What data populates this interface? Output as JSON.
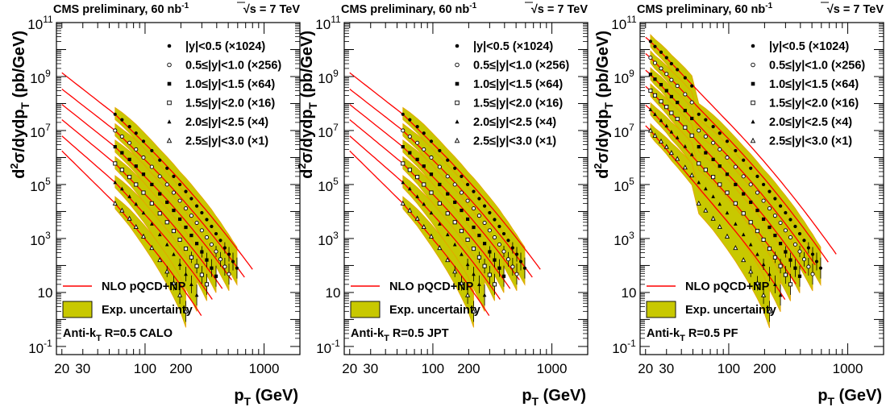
{
  "figure": {
    "header_left": "CMS preliminary, 60 nb",
    "header_left_sup": "-1",
    "header_right_sqrt": "√",
    "header_right": "s = 7 TeV",
    "ylabel_prefix": "d",
    "ylabel_sup": "2",
    "ylabel_main": "σ/dydp",
    "ylabel_sub": "T",
    "ylabel_units": " (pb/GeV)",
    "xlabel_main": "p",
    "xlabel_sub": "T",
    "xlabel_units": " (GeV)",
    "legend_entries": [
      {
        "marker": "dot",
        "label": "|y|<0.5 (×1024)"
      },
      {
        "marker": "open-circle",
        "label": "0.5≤|y|<1.0 (×256)"
      },
      {
        "marker": "square",
        "label": "1.0≤|y|<1.5 (×64)"
      },
      {
        "marker": "open-square",
        "label": "1.5≤|y|<2.0 (×16)"
      },
      {
        "marker": "triangle",
        "label": "2.0≤|y|<2.5 (×4)"
      },
      {
        "marker": "open-triangle",
        "label": "2.5≤|y|<3.0 (×1)"
      }
    ],
    "nlo_label": "NLO pQCD+NP",
    "exp_label": "Exp. uncertainty",
    "colors": {
      "nlo_line": "#ff0000",
      "uncertainty_band": "#c8c800",
      "band_edge": "#e8a000"
    }
  },
  "chart_data": [
    {
      "type": "scatter",
      "panel_label": "Anti-k",
      "panel_label_sub": "T",
      "panel_label_rest": " R=0.5 CALO",
      "xscale": "log",
      "yscale": "log",
      "xlim": [
        18,
        2000
      ],
      "ylim": [
        0.05,
        100000000000
      ],
      "xticks": [
        20,
        30,
        100,
        200,
        1000
      ],
      "yticks": [
        "10^-1",
        "10",
        "10^3",
        "10^5",
        "10^7",
        "10^9",
        "10^11"
      ],
      "series": [
        {
          "name": "|y|<0.5 (×1024)",
          "marker": "dot",
          "data_x": [
            56,
            64,
            74,
            84,
            97,
            114,
            133,
            153,
            174,
            196,
            220,
            245,
            272,
            300,
            330,
            362,
            395,
            430,
            468,
            507,
            548,
            592
          ],
          "data_y": [
            40000000,
            25000000,
            14000000,
            8000000,
            4000000,
            1800000,
            800000,
            400000,
            200000,
            100000,
            55000,
            30000,
            16000,
            9000,
            5000,
            2800,
            1500,
            850,
            450,
            260,
            140,
            80
          ]
        },
        {
          "name": "0.5≤|y|<1.0 (×256)",
          "marker": "open-circle",
          "data_x": [
            56,
            64,
            74,
            84,
            97,
            114,
            133,
            153,
            174,
            196,
            220,
            245,
            272,
            300,
            330,
            362,
            395,
            430,
            468,
            507
          ],
          "data_y": [
            10000000,
            6000000,
            3500000,
            2000000,
            1000000,
            450000,
            200000,
            100000,
            50000,
            25000,
            13000,
            7000,
            3800,
            2000,
            1100,
            600,
            330,
            170,
            90,
            48
          ]
        },
        {
          "name": "1.0≤|y|<1.5 (×64)",
          "marker": "square",
          "data_x": [
            56,
            64,
            74,
            84,
            97,
            114,
            133,
            153,
            174,
            196,
            220,
            245,
            272,
            300,
            330,
            362,
            395
          ],
          "data_y": [
            2500000,
            1500000,
            850000,
            480000,
            240000,
            100000,
            45000,
            22000,
            11000,
            5200,
            2600,
            1300,
            650,
            320,
            160,
            80,
            40
          ]
        },
        {
          "name": "1.5≤|y|<2.0 (×16)",
          "marker": "open-square",
          "data_x": [
            56,
            64,
            74,
            84,
            97,
            114,
            133,
            153,
            174,
            196,
            220,
            245,
            272,
            300,
            330
          ],
          "data_y": [
            600000,
            350000,
            190000,
            100000,
            50000,
            20000,
            8500,
            4000,
            1900,
            900,
            420,
            200,
            95,
            45,
            20
          ]
        },
        {
          "name": "2.0≤|y|<2.5 (×4)",
          "marker": "triangle",
          "data_x": [
            56,
            64,
            74,
            84,
            97,
            114,
            133,
            153,
            174,
            196,
            220,
            245,
            272
          ],
          "data_y": [
            120000,
            70000,
            36000,
            19000,
            9000,
            3500,
            1400,
            600,
            260,
            110,
            48,
            20,
            8
          ]
        },
        {
          "name": "2.5≤|y|<3.0 (×1)",
          "marker": "open-triangle",
          "data_x": [
            56,
            64,
            74,
            84,
            97,
            114,
            133,
            153,
            174,
            196,
            220
          ],
          "data_y": [
            20000,
            11000,
            5500,
            2700,
            1200,
            450,
            160,
            60,
            22,
            8,
            2
          ]
        }
      ]
    },
    {
      "type": "scatter",
      "panel_label": "Anti-k",
      "panel_label_sub": "T",
      "panel_label_rest": " R=0.5 JPT",
      "xscale": "log",
      "yscale": "log",
      "xlim": [
        18,
        2000
      ],
      "ylim": [
        0.05,
        100000000000
      ],
      "xticks": [
        20,
        30,
        100,
        200,
        1000
      ],
      "yticks": [
        "10^-1",
        "10",
        "10^3",
        "10^5",
        "10^7",
        "10^9",
        "10^11"
      ],
      "series": [
        {
          "name": "|y|<0.5 (×1024)",
          "marker": "dot",
          "data_x": [
            56,
            64,
            74,
            84,
            97,
            114,
            133,
            153,
            174,
            196,
            220,
            245,
            272,
            300,
            330,
            362,
            395,
            430,
            468,
            507,
            548,
            592
          ],
          "data_y": [
            40000000,
            25000000,
            14000000,
            8000000,
            4000000,
            1800000,
            800000,
            400000,
            200000,
            100000,
            55000,
            30000,
            16000,
            9000,
            5000,
            2800,
            1500,
            850,
            450,
            260,
            140,
            80
          ]
        },
        {
          "name": "0.5≤|y|<1.0 (×256)",
          "marker": "open-circle",
          "data_x": [
            56,
            64,
            74,
            84,
            97,
            114,
            133,
            153,
            174,
            196,
            220,
            245,
            272,
            300,
            330,
            362,
            395,
            430,
            468,
            507
          ],
          "data_y": [
            10000000,
            6000000,
            3500000,
            2000000,
            1000000,
            450000,
            200000,
            100000,
            50000,
            25000,
            13000,
            7000,
            3800,
            2000,
            1100,
            600,
            330,
            170,
            90,
            48
          ]
        },
        {
          "name": "1.0≤|y|<1.5 (×64)",
          "marker": "square",
          "data_x": [
            56,
            64,
            74,
            84,
            97,
            114,
            133,
            153,
            174,
            196,
            220,
            245,
            272,
            300,
            330,
            362,
            395
          ],
          "data_y": [
            2500000,
            1500000,
            850000,
            480000,
            240000,
            100000,
            45000,
            22000,
            11000,
            5200,
            2600,
            1300,
            650,
            320,
            160,
            80,
            40
          ]
        },
        {
          "name": "1.5≤|y|<2.0 (×16)",
          "marker": "open-square",
          "data_x": [
            56,
            64,
            74,
            84,
            97,
            114,
            133,
            153,
            174,
            196,
            220,
            245,
            272,
            300,
            330
          ],
          "data_y": [
            600000,
            350000,
            190000,
            100000,
            50000,
            20000,
            8500,
            4000,
            1900,
            900,
            420,
            200,
            95,
            45,
            20
          ]
        },
        {
          "name": "2.0≤|y|<2.5 (×4)",
          "marker": "triangle",
          "data_x": [
            56,
            64,
            74,
            84,
            97,
            114,
            133,
            153,
            174,
            196,
            220,
            245,
            272
          ],
          "data_y": [
            120000,
            70000,
            36000,
            19000,
            9000,
            3500,
            1400,
            600,
            260,
            110,
            48,
            20,
            8
          ]
        },
        {
          "name": "2.5≤|y|<3.0 (×1)",
          "marker": "open-triangle",
          "data_x": [
            56,
            64,
            74,
            84,
            97,
            114,
            133,
            153,
            174,
            196,
            220
          ],
          "data_y": [
            20000,
            11000,
            5500,
            2700,
            1200,
            450,
            160,
            60,
            22,
            8,
            2
          ]
        }
      ]
    },
    {
      "type": "scatter",
      "panel_label": "Anti-k",
      "panel_label_sub": "T",
      "panel_label_rest": " R=0.5 PF",
      "xscale": "log",
      "yscale": "log",
      "xlim": [
        18,
        2000
      ],
      "ylim": [
        0.05,
        100000000000
      ],
      "xticks": [
        20,
        30,
        100,
        200,
        1000
      ],
      "yticks": [
        "10^-1",
        "10",
        "10^3",
        "10^5",
        "10^7",
        "10^9",
        "10^11"
      ],
      "series": [
        {
          "name": "|y|<0.5 (×1024)",
          "marker": "dot",
          "data_x": [
            22,
            24,
            27,
            30,
            33,
            37,
            43,
            49,
            56,
            64,
            74,
            84,
            97,
            114,
            133,
            153,
            174,
            196,
            220,
            245,
            272,
            300,
            330,
            362,
            395,
            430,
            468,
            507,
            548,
            592
          ],
          "data_y": [
            20000000000,
            13000000000,
            8000000000,
            5000000000,
            3000000000,
            1800000000,
            900000000,
            450000000,
            40000000,
            25000000,
            14000000,
            8000000,
            4000000,
            1800000,
            800000,
            400000,
            200000,
            100000,
            55000,
            30000,
            16000,
            9000,
            5000,
            2800,
            1500,
            850,
            450,
            260,
            140,
            80
          ]
        },
        {
          "name": "0.5≤|y|<1.0 (×256)",
          "marker": "open-circle",
          "data_x": [
            22,
            24,
            27,
            30,
            33,
            37,
            43,
            49,
            56,
            64,
            74,
            84,
            97,
            114,
            133,
            153,
            174,
            196,
            220,
            245,
            272,
            300,
            330,
            362,
            395,
            430,
            468,
            507
          ],
          "data_y": [
            5000000000,
            3200000000,
            2000000000,
            1250000000,
            750000000,
            450000000,
            220000000,
            110000000,
            10000000,
            6000000,
            3500000,
            2000000,
            1000000,
            450000,
            200000,
            100000,
            50000,
            25000,
            13000,
            7000,
            3800,
            2000,
            1100,
            600,
            330,
            170,
            90,
            48
          ]
        },
        {
          "name": "1.0≤|y|<1.5 (×64)",
          "marker": "square",
          "data_x": [
            22,
            24,
            27,
            30,
            33,
            37,
            43,
            49,
            56,
            64,
            74,
            84,
            97,
            114,
            133,
            153,
            174,
            196,
            220,
            245,
            272,
            300,
            330,
            362,
            395
          ],
          "data_y": [
            1200000000,
            800000000,
            500000000,
            300000000,
            180000000,
            110000000,
            55000000,
            28000000,
            2500000,
            1500000,
            850000,
            480000,
            240000,
            100000,
            45000,
            22000,
            11000,
            5200,
            2600,
            1300,
            650,
            320,
            160,
            80,
            40
          ]
        },
        {
          "name": "1.5≤|y|<2.0 (×16)",
          "marker": "open-square",
          "data_x": [
            22,
            24,
            27,
            30,
            33,
            37,
            43,
            49,
            56,
            64,
            74,
            84,
            97,
            114,
            133,
            153,
            174,
            196,
            220,
            245,
            272,
            300,
            330
          ],
          "data_y": [
            300000000,
            200000000,
            120000000,
            75000000,
            45000000,
            27000000,
            13000000,
            6500000,
            600000,
            350000,
            190000,
            100000,
            50000,
            20000,
            8500,
            4000,
            1900,
            900,
            420,
            200,
            95,
            45,
            20
          ]
        },
        {
          "name": "2.0≤|y|<2.5 (×4)",
          "marker": "triangle",
          "data_x": [
            22,
            24,
            27,
            30,
            33,
            37,
            43,
            49,
            56,
            64,
            74,
            84,
            97,
            114,
            133,
            153,
            174,
            196,
            220,
            245,
            272
          ],
          "data_y": [
            60000000,
            40000000,
            24000000,
            15000000,
            9000000,
            5500000,
            2600000,
            1300000,
            120000,
            70000,
            36000,
            19000,
            9000,
            3500,
            1400,
            600,
            260,
            110,
            48,
            20,
            8
          ]
        },
        {
          "name": "2.5≤|y|<3.0 (×1)",
          "marker": "open-triangle",
          "data_x": [
            22,
            24,
            27,
            30,
            33,
            37,
            43,
            49,
            56,
            64,
            74,
            84,
            97,
            114,
            133,
            153,
            174,
            196,
            220
          ],
          "data_y": [
            10000000,
            6500000,
            4000000,
            2500000,
            1500000,
            900000,
            430000,
            220000,
            20000,
            11000,
            5500,
            2700,
            1200,
            450,
            160,
            60,
            22,
            8,
            2
          ]
        }
      ]
    }
  ]
}
